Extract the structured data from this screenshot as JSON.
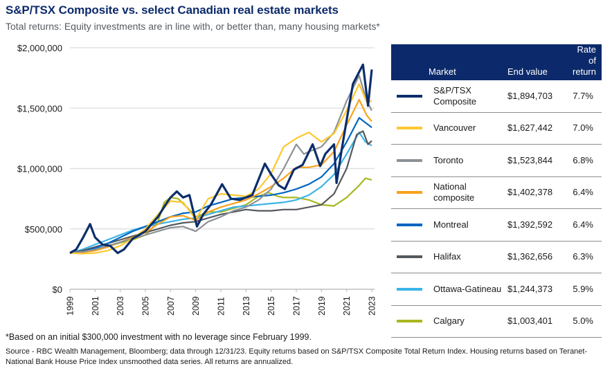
{
  "header": {
    "title": "S&P/TSX Composite vs. select Canadian real estate markets",
    "subtitle": "Total returns: Equity investments are in line with, or better than, many housing markets*"
  },
  "legend": {
    "headers": {
      "market": "Market",
      "end_value": "End value",
      "rate_line1": "Rate of",
      "rate_line2": "return"
    },
    "rows": [
      {
        "market": "S&P/TSX Composite",
        "end_value": "$1,894,703",
        "rate": "7.7%",
        "color": "#0c2d6b"
      },
      {
        "market": "Vancouver",
        "end_value": "$1,627,442",
        "rate": "7.0%",
        "color": "#fdc82f"
      },
      {
        "market": "Toronto",
        "end_value": "$1,523,844",
        "rate": "6.8%",
        "color": "#8c9196"
      },
      {
        "market": "National composite",
        "end_value": "$1,402,378",
        "rate": "6.4%",
        "color": "#f7a21b"
      },
      {
        "market": "Montreal",
        "end_value": "$1,392,592",
        "rate": "6.4%",
        "color": "#0066c0"
      },
      {
        "market": "Halifax",
        "end_value": "$1,362,656",
        "rate": "6.3%",
        "color": "#54585c"
      },
      {
        "market": "Ottawa-Gatineau",
        "end_value": "$1,244,373",
        "rate": "5.9%",
        "color": "#39b4e8"
      },
      {
        "market": "Calgary",
        "end_value": "$1,003,401",
        "rate": "5.0%",
        "color": "#a8b81f"
      }
    ]
  },
  "footer": {
    "footnote": "*Based on an initial $300,000 investment with no leverage since February 1999.",
    "source": "Source - RBC Wealth Management, Bloomberg; data through 12/31/23. Equity returns based on S&P/TSX Composite Total Return Index. Housing returns based on Teranet-National Bank House Price Index unsmoothed data series. All returns are annualized."
  },
  "chart_data": {
    "type": "line",
    "title": "S&P/TSX Composite vs. select Canadian real estate markets",
    "xlabel": "",
    "ylabel": "",
    "xlim": [
      1999,
      2023
    ],
    "ylim": [
      0,
      2000000
    ],
    "grid": true,
    "legend_position": "right (table)",
    "x_ticks": [
      "1999",
      "2001",
      "2003",
      "2005",
      "2007",
      "2009",
      "2011",
      "2013",
      "2015",
      "2017",
      "2019",
      "2021",
      "2023"
    ],
    "y_ticks": [
      {
        "value": 0,
        "label": "$0"
      },
      {
        "value": 500000,
        "label": "$500,000"
      },
      {
        "value": 1000000,
        "label": "$1,000,000"
      },
      {
        "value": 1500000,
        "label": "$1,500,000"
      },
      {
        "value": 2000000,
        "label": "$2,000,000"
      }
    ],
    "series": [
      {
        "name": "Calgary",
        "color": "#a8b81f",
        "points": [
          [
            1999,
            300000
          ],
          [
            2000,
            310000
          ],
          [
            2001,
            330000
          ],
          [
            2002,
            355000
          ],
          [
            2003,
            385000
          ],
          [
            2004,
            410000
          ],
          [
            2005,
            450000
          ],
          [
            2006,
            560000
          ],
          [
            2006.5,
            720000
          ],
          [
            2007,
            760000
          ],
          [
            2007.6,
            750000
          ],
          [
            2008.3,
            680000
          ],
          [
            2009,
            600000
          ],
          [
            2010,
            640000
          ],
          [
            2011,
            640000
          ],
          [
            2012,
            670000
          ],
          [
            2013,
            700000
          ],
          [
            2014,
            770000
          ],
          [
            2014.8,
            800000
          ],
          [
            2015.5,
            770000
          ],
          [
            2016,
            760000
          ],
          [
            2017,
            760000
          ],
          [
            2018,
            740000
          ],
          [
            2019,
            700000
          ],
          [
            2020,
            690000
          ],
          [
            2021,
            760000
          ],
          [
            2022,
            860000
          ],
          [
            2022.5,
            920000
          ],
          [
            2023,
            905000
          ]
        ]
      },
      {
        "name": "Ottawa-Gatineau",
        "color": "#39b4e8",
        "points": [
          [
            1999,
            300000
          ],
          [
            2000,
            330000
          ],
          [
            2001,
            370000
          ],
          [
            2002,
            410000
          ],
          [
            2003,
            450000
          ],
          [
            2004,
            490000
          ],
          [
            2005,
            520000
          ],
          [
            2006,
            540000
          ],
          [
            2007,
            560000
          ],
          [
            2008,
            580000
          ],
          [
            2009,
            590000
          ],
          [
            2010,
            620000
          ],
          [
            2011,
            650000
          ],
          [
            2012,
            680000
          ],
          [
            2013,
            690000
          ],
          [
            2014,
            700000
          ],
          [
            2015,
            710000
          ],
          [
            2016,
            720000
          ],
          [
            2017,
            740000
          ],
          [
            2018,
            780000
          ],
          [
            2019,
            850000
          ],
          [
            2020,
            950000
          ],
          [
            2021,
            1120000
          ],
          [
            2022,
            1300000
          ],
          [
            2022.5,
            1220000
          ],
          [
            2023,
            1190000
          ]
        ]
      },
      {
        "name": "Halifax",
        "color": "#54585c",
        "points": [
          [
            1999,
            300000
          ],
          [
            2000,
            320000
          ],
          [
            2001,
            350000
          ],
          [
            2002,
            380000
          ],
          [
            2003,
            410000
          ],
          [
            2004,
            440000
          ],
          [
            2005,
            470000
          ],
          [
            2006,
            500000
          ],
          [
            2007,
            530000
          ],
          [
            2008,
            550000
          ],
          [
            2009,
            560000
          ],
          [
            2010,
            590000
          ],
          [
            2011,
            620000
          ],
          [
            2012,
            640000
          ],
          [
            2013,
            660000
          ],
          [
            2014,
            650000
          ],
          [
            2015,
            650000
          ],
          [
            2016,
            660000
          ],
          [
            2017,
            660000
          ],
          [
            2018,
            680000
          ],
          [
            2019,
            700000
          ],
          [
            2020,
            790000
          ],
          [
            2021,
            1000000
          ],
          [
            2021.8,
            1280000
          ],
          [
            2022.3,
            1310000
          ],
          [
            2022.7,
            1200000
          ],
          [
            2023,
            1230000
          ]
        ]
      },
      {
        "name": "Montreal",
        "color": "#0066c0",
        "points": [
          [
            1999,
            300000
          ],
          [
            2000,
            310000
          ],
          [
            2001,
            340000
          ],
          [
            2002,
            380000
          ],
          [
            2003,
            430000
          ],
          [
            2004,
            480000
          ],
          [
            2005,
            520000
          ],
          [
            2006,
            560000
          ],
          [
            2007,
            600000
          ],
          [
            2008,
            630000
          ],
          [
            2009,
            640000
          ],
          [
            2010,
            690000
          ],
          [
            2011,
            720000
          ],
          [
            2012,
            750000
          ],
          [
            2013,
            760000
          ],
          [
            2014,
            770000
          ],
          [
            2015,
            780000
          ],
          [
            2016,
            800000
          ],
          [
            2017,
            830000
          ],
          [
            2018,
            870000
          ],
          [
            2019,
            930000
          ],
          [
            2020,
            1040000
          ],
          [
            2021,
            1220000
          ],
          [
            2022,
            1420000
          ],
          [
            2022.5,
            1380000
          ],
          [
            2023,
            1340000
          ]
        ]
      },
      {
        "name": "National composite",
        "color": "#f7a21b",
        "points": [
          [
            1999,
            300000
          ],
          [
            2000,
            305000
          ],
          [
            2001,
            320000
          ],
          [
            2002,
            350000
          ],
          [
            2003,
            390000
          ],
          [
            2004,
            430000
          ],
          [
            2005,
            470000
          ],
          [
            2006,
            540000
          ],
          [
            2007,
            600000
          ],
          [
            2008,
            610000
          ],
          [
            2009,
            570000
          ],
          [
            2010,
            640000
          ],
          [
            2011,
            680000
          ],
          [
            2012,
            710000
          ],
          [
            2013,
            740000
          ],
          [
            2014,
            790000
          ],
          [
            2015,
            850000
          ],
          [
            2016,
            920000
          ],
          [
            2017,
            1010000
          ],
          [
            2018,
            1010000
          ],
          [
            2019,
            1030000
          ],
          [
            2020,
            1140000
          ],
          [
            2021,
            1360000
          ],
          [
            2022,
            1570000
          ],
          [
            2022.6,
            1440000
          ],
          [
            2023,
            1390000
          ]
        ]
      },
      {
        "name": "Toronto",
        "color": "#8c9196",
        "points": [
          [
            1999,
            300000
          ],
          [
            2000,
            310000
          ],
          [
            2001,
            330000
          ],
          [
            2002,
            360000
          ],
          [
            2003,
            390000
          ],
          [
            2004,
            420000
          ],
          [
            2005,
            450000
          ],
          [
            2006,
            480000
          ],
          [
            2007,
            510000
          ],
          [
            2008,
            520000
          ],
          [
            2009,
            480000
          ],
          [
            2010,
            560000
          ],
          [
            2011,
            600000
          ],
          [
            2012,
            650000
          ],
          [
            2013,
            680000
          ],
          [
            2014,
            740000
          ],
          [
            2015,
            830000
          ],
          [
            2016,
            1000000
          ],
          [
            2017,
            1200000
          ],
          [
            2017.6,
            1120000
          ],
          [
            2018,
            1140000
          ],
          [
            2019,
            1180000
          ],
          [
            2020,
            1300000
          ],
          [
            2021,
            1560000
          ],
          [
            2022,
            1770000
          ],
          [
            2022.6,
            1560000
          ],
          [
            2023,
            1480000
          ]
        ]
      },
      {
        "name": "Vancouver",
        "color": "#fdc82f",
        "points": [
          [
            1999,
            300000
          ],
          [
            2000,
            295000
          ],
          [
            2001,
            300000
          ],
          [
            2002,
            320000
          ],
          [
            2003,
            360000
          ],
          [
            2004,
            420000
          ],
          [
            2005,
            500000
          ],
          [
            2006,
            620000
          ],
          [
            2007,
            730000
          ],
          [
            2008,
            720000
          ],
          [
            2009,
            580000
          ],
          [
            2010,
            750000
          ],
          [
            2011,
            790000
          ],
          [
            2012,
            780000
          ],
          [
            2013,
            770000
          ],
          [
            2014,
            830000
          ],
          [
            2015,
            960000
          ],
          [
            2016,
            1180000
          ],
          [
            2017,
            1250000
          ],
          [
            2018,
            1300000
          ],
          [
            2019,
            1220000
          ],
          [
            2020,
            1290000
          ],
          [
            2021,
            1480000
          ],
          [
            2022,
            1700000
          ],
          [
            2022.6,
            1550000
          ],
          [
            2023,
            1560000
          ]
        ]
      },
      {
        "name": "S&P/TSX Composite",
        "color": "#0c2d6b",
        "points": [
          [
            1999,
            300000
          ],
          [
            1999.5,
            330000
          ],
          [
            2000,
            420000
          ],
          [
            2000.6,
            540000
          ],
          [
            2001,
            430000
          ],
          [
            2001.6,
            370000
          ],
          [
            2002.2,
            360000
          ],
          [
            2002.8,
            300000
          ],
          [
            2003.3,
            330000
          ],
          [
            2004,
            420000
          ],
          [
            2005,
            480000
          ],
          [
            2006,
            600000
          ],
          [
            2006.6,
            700000
          ],
          [
            2007,
            760000
          ],
          [
            2007.5,
            810000
          ],
          [
            2008,
            760000
          ],
          [
            2008.5,
            780000
          ],
          [
            2009.1,
            520000
          ],
          [
            2009.6,
            620000
          ],
          [
            2010.2,
            700000
          ],
          [
            2011.1,
            870000
          ],
          [
            2011.8,
            750000
          ],
          [
            2012.5,
            740000
          ],
          [
            2013,
            760000
          ],
          [
            2013.5,
            780000
          ],
          [
            2014.5,
            1040000
          ],
          [
            2015,
            950000
          ],
          [
            2015.6,
            860000
          ],
          [
            2016.1,
            830000
          ],
          [
            2016.8,
            990000
          ],
          [
            2017.5,
            1030000
          ],
          [
            2018.3,
            1200000
          ],
          [
            2018.9,
            1020000
          ],
          [
            2019.3,
            1120000
          ],
          [
            2020,
            1200000
          ],
          [
            2020.2,
            880000
          ],
          [
            2020.6,
            1150000
          ],
          [
            2021,
            1400000
          ],
          [
            2021.5,
            1700000
          ],
          [
            2022,
            1800000
          ],
          [
            2022.3,
            1860000
          ],
          [
            2022.7,
            1520000
          ],
          [
            2023,
            1820000
          ]
        ]
      }
    ]
  }
}
